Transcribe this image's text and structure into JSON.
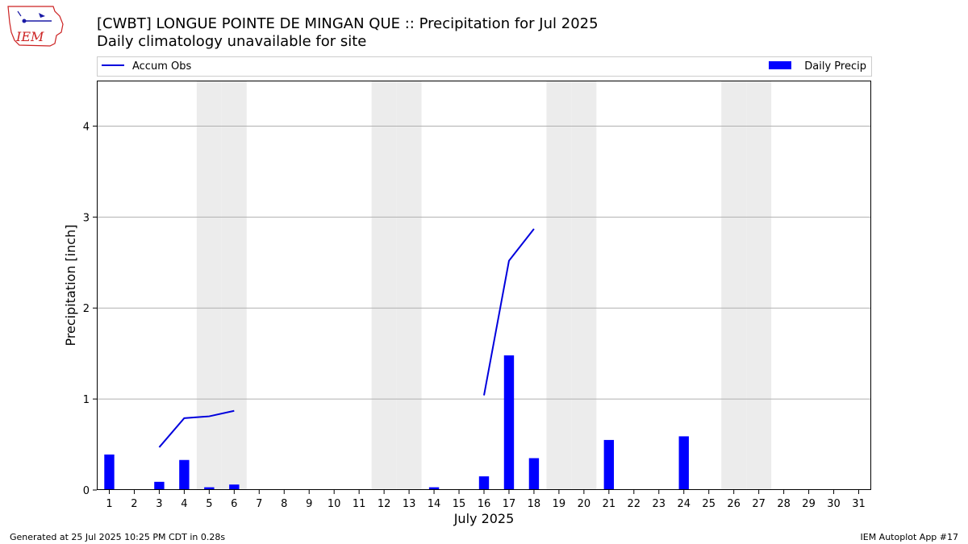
{
  "header": {
    "logo_text": "IEM",
    "title": "[CWBT] LONGUE POINTE DE MINGAN QUE :: Precipitation for Jul 2025",
    "subtitle": "Daily climatology unavailable for site"
  },
  "footer": {
    "generated": "Generated at 25 Jul 2025 10:25 PM CDT in 0.28s",
    "app": "IEM Autoplot App #17"
  },
  "colors": {
    "bar": "#0000ff",
    "line": "#0000dd",
    "weekend_band": "#ececec",
    "grid": "#b0b0b0",
    "logo_red": "#cc2222",
    "logo_blue": "#1a1aa6"
  },
  "chart_data": {
    "type": "bar",
    "xlabel": "July 2025",
    "ylabel": "Precipitation [inch]",
    "ylim": [
      0,
      4.5
    ],
    "yticks": [
      0,
      1,
      2,
      3,
      4
    ],
    "xlim": [
      0.5,
      31.5
    ],
    "xticks": [
      1,
      2,
      3,
      4,
      5,
      6,
      7,
      8,
      9,
      10,
      11,
      12,
      13,
      14,
      15,
      16,
      17,
      18,
      19,
      20,
      21,
      22,
      23,
      24,
      25,
      26,
      27,
      28,
      29,
      30,
      31
    ],
    "grid": "horizontal",
    "legend_placement": "top, above plot",
    "weekend_days": [
      5,
      6,
      12,
      13,
      19,
      20,
      26,
      27
    ],
    "series": [
      {
        "name": "Daily Precip",
        "type": "bar",
        "x": [
          1,
          3,
          4,
          5,
          6,
          14,
          16,
          17,
          18,
          21,
          24
        ],
        "values": [
          0.39,
          0.09,
          0.33,
          0.03,
          0.06,
          0.03,
          0.15,
          1.48,
          0.35,
          0.55,
          0.59
        ]
      },
      {
        "name": "Accum Obs",
        "type": "line",
        "segments": [
          {
            "x": [
              3,
              4,
              5,
              6
            ],
            "values": [
              0.47,
              0.79,
              0.81,
              0.87
            ]
          },
          {
            "x": [
              16,
              17,
              18
            ],
            "values": [
              1.04,
              2.52,
              2.87
            ]
          }
        ]
      }
    ]
  }
}
